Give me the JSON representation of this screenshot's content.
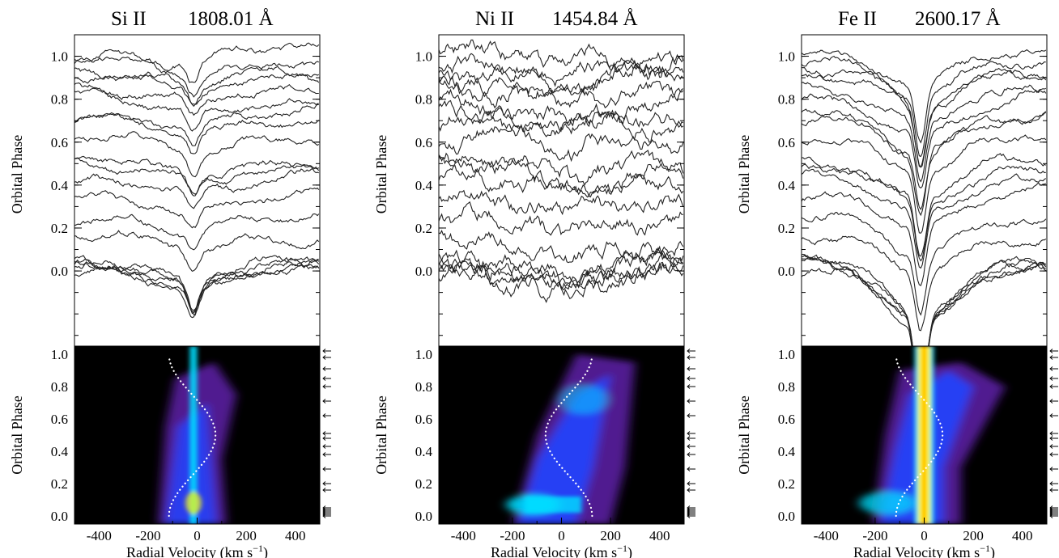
{
  "figure": {
    "x_label": "Radial Velocity (km s",
    "x_label_sup": "−1",
    "x_label_close": ")",
    "y_label": "Orbital Phase"
  },
  "chart_data": [
    {
      "type": "line",
      "ion": "Si II",
      "wavelength": "1808.01 Å",
      "line_depth": 0.1,
      "line_width_kms": 120,
      "noise": 0.01,
      "x_range": [
        -500,
        500
      ],
      "x_ticks": [
        "-400",
        "-200",
        "0",
        "200",
        "400"
      ],
      "y_range_top": [
        -0.35,
        1.1
      ],
      "y_ticks_top": [
        "0.0",
        "0.2",
        "0.4",
        "0.6",
        "0.8",
        "1.0"
      ],
      "y_range_bottom": [
        -0.05,
        1.05
      ],
      "y_ticks_bottom": [
        "0.0",
        "0.2",
        "0.4",
        "0.6",
        "0.8",
        "1.0"
      ],
      "spectra_phases": [
        0.01,
        0.02,
        0.03,
        0.04,
        0.05,
        0.16,
        0.25,
        0.35,
        0.43,
        0.48,
        0.51,
        0.62,
        0.71,
        0.73,
        0.8,
        0.85,
        0.91,
        0.93,
        0.98,
        1.02
      ],
      "arrow_phases": [
        0.0,
        0.01,
        0.02,
        0.03,
        0.04,
        0.05,
        0.16,
        0.2,
        0.29,
        0.38,
        0.43,
        0.48,
        0.51,
        0.62,
        0.71,
        0.8,
        0.85,
        0.91,
        0.98,
        1.02
      ],
      "s_wave_kms": {
        "gamma": -20,
        "K": 95
      },
      "trail_intensity": {
        "core_phase_high": [
          0.0,
          0.15
        ],
        "core_color": "cyan"
      },
      "colors": {
        "background": "#000000",
        "low": "#5a1fa0",
        "mid": "#2244ff",
        "high": "#00e0ff",
        "peak": "#ffff00"
      }
    },
    {
      "type": "line",
      "ion": "Ni II",
      "wavelength": "1454.84 Å",
      "line_depth": 0.09,
      "line_width_kms": 170,
      "noise": 0.026,
      "x_range": [
        -500,
        500
      ],
      "x_ticks": [
        "-400",
        "-200",
        "0",
        "200",
        "400"
      ],
      "y_range_top": [
        -0.35,
        1.1
      ],
      "y_ticks_top": [
        "0.0",
        "0.2",
        "0.4",
        "0.6",
        "0.8",
        "1.0"
      ],
      "y_range_bottom": [
        -0.05,
        1.05
      ],
      "y_ticks_bottom": [
        "0.0",
        "0.2",
        "0.4",
        "0.6",
        "0.8",
        "1.0"
      ],
      "spectra_phases": [
        0.01,
        0.02,
        0.03,
        0.04,
        0.05,
        0.16,
        0.25,
        0.35,
        0.43,
        0.48,
        0.51,
        0.62,
        0.71,
        0.73,
        0.8,
        0.85,
        0.91,
        0.93,
        0.98,
        1.02
      ],
      "arrow_phases": [
        0.0,
        0.01,
        0.02,
        0.03,
        0.04,
        0.05,
        0.16,
        0.2,
        0.29,
        0.38,
        0.43,
        0.48,
        0.51,
        0.62,
        0.71,
        0.8,
        0.85,
        0.91,
        0.98,
        1.02
      ],
      "s_wave_kms": {
        "gamma": 30,
        "K": 95
      },
      "trail_intensity": {
        "core_phase_high": [
          0.0,
          0.15
        ],
        "core_color": "cyan"
      },
      "colors": {
        "background": "#000000",
        "low": "#5a1fa0",
        "mid": "#2244ff",
        "high": "#00e0ff",
        "peak": "#ffff00"
      }
    },
    {
      "type": "line",
      "ion": "Fe II",
      "wavelength": "2600.17 Å",
      "line_depth": 0.3,
      "line_width_kms": 110,
      "noise": 0.01,
      "x_range": [
        -500,
        500
      ],
      "x_ticks": [
        "-400",
        "-200",
        "0",
        "200",
        "400"
      ],
      "y_range_top": [
        -0.35,
        1.1
      ],
      "y_ticks_top": [
        "0.0",
        "0.2",
        "0.4",
        "0.6",
        "0.8",
        "1.0"
      ],
      "y_range_bottom": [
        -0.05,
        1.05
      ],
      "y_ticks_bottom": [
        "0.0",
        "0.2",
        "0.4",
        "0.6",
        "0.8",
        "1.0"
      ],
      "spectra_phases": [
        0.01,
        0.02,
        0.03,
        0.04,
        0.05,
        0.16,
        0.25,
        0.35,
        0.43,
        0.48,
        0.51,
        0.62,
        0.71,
        0.73,
        0.8,
        0.85,
        0.91,
        0.93,
        0.98,
        1.02
      ],
      "arrow_phases": [
        0.0,
        0.01,
        0.02,
        0.03,
        0.04,
        0.05,
        0.16,
        0.2,
        0.29,
        0.38,
        0.43,
        0.48,
        0.51,
        0.62,
        0.71,
        0.8,
        0.85,
        0.91,
        0.98,
        1.02
      ],
      "s_wave_kms": {
        "gamma": -20,
        "K": 95
      },
      "trail_intensity": {
        "core_phase_high": [
          0.0,
          1.0
        ],
        "core_color": "yellow"
      },
      "colors": {
        "background": "#000000",
        "low": "#5a1fa0",
        "mid": "#2244ff",
        "high": "#00e0ff",
        "peak": "#ffff00"
      }
    }
  ]
}
